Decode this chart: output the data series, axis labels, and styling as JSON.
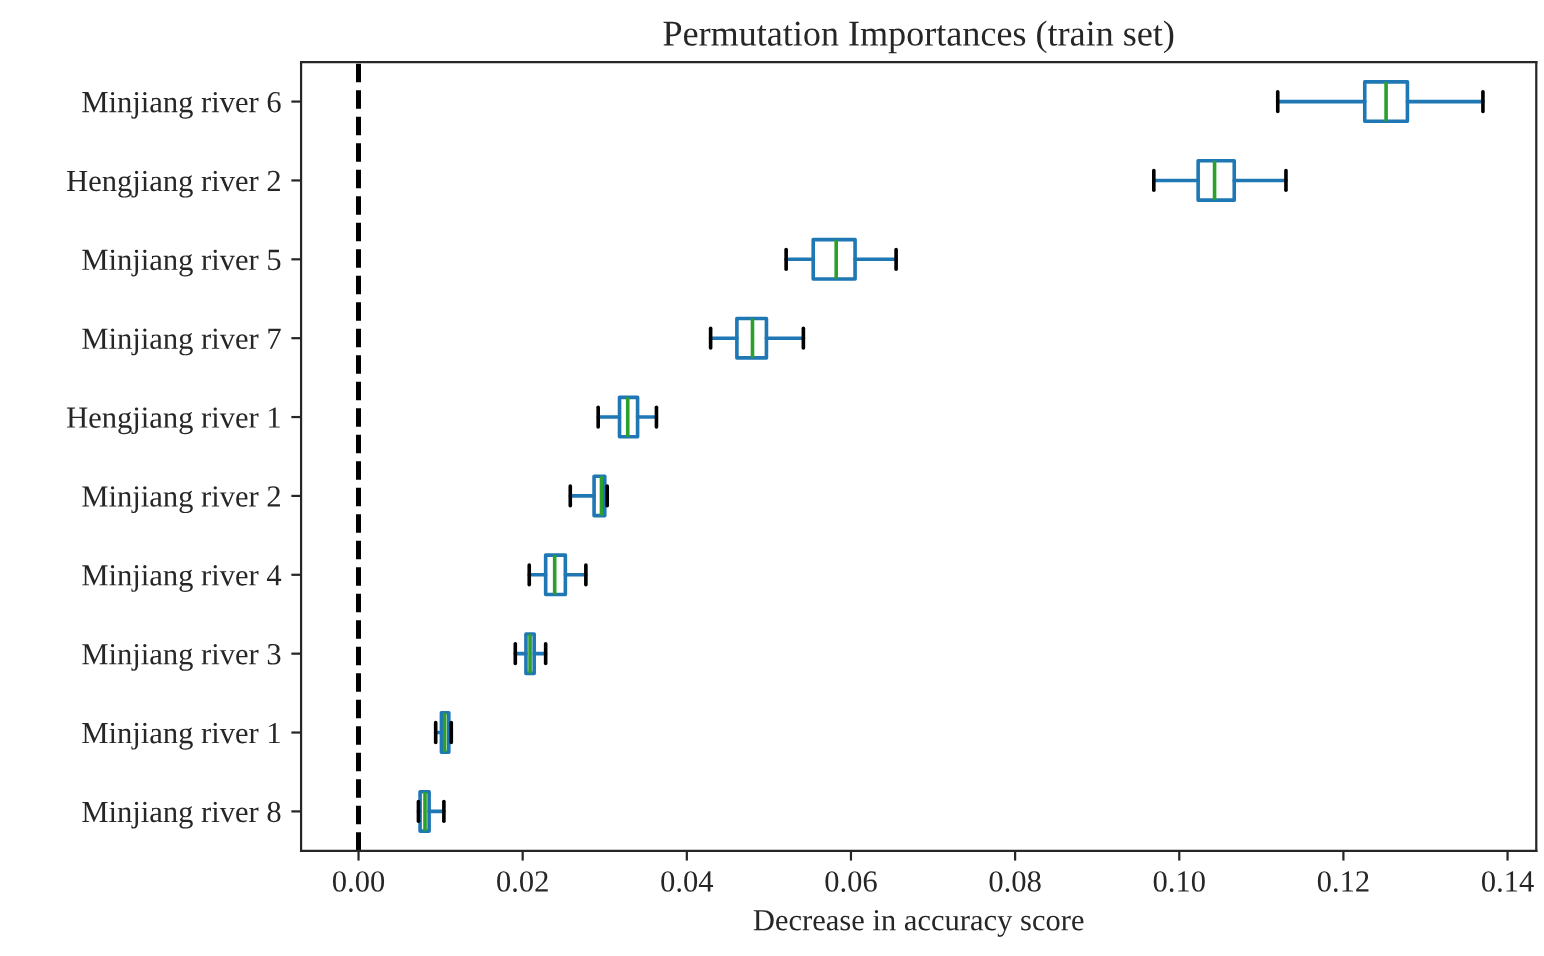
{
  "chart_data": {
    "type": "box",
    "orientation": "horizontal",
    "title": "Permutation Importances (train set)",
    "xlabel": "Decrease in accuracy score",
    "categories": [
      "Minjiang river 6",
      "Hengjiang river 2",
      "Minjiang river 5",
      "Minjiang river 7",
      "Hengjiang river 1",
      "Minjiang river 2",
      "Minjiang river 4",
      "Minjiang river 3",
      "Minjiang river 1",
      "Minjiang river 8"
    ],
    "boxes": [
      {
        "low": 0.112,
        "q1": 0.1226,
        "median": 0.1252,
        "q3": 0.1278,
        "high": 0.137
      },
      {
        "low": 0.0969,
        "q1": 0.1023,
        "median": 0.1043,
        "q3": 0.1067,
        "high": 0.113
      },
      {
        "low": 0.0521,
        "q1": 0.0554,
        "median": 0.0582,
        "q3": 0.0605,
        "high": 0.0655
      },
      {
        "low": 0.0429,
        "q1": 0.0461,
        "median": 0.048,
        "q3": 0.0497,
        "high": 0.0542
      },
      {
        "low": 0.0292,
        "q1": 0.0318,
        "median": 0.0328,
        "q3": 0.034,
        "high": 0.0363
      },
      {
        "low": 0.0258,
        "q1": 0.0287,
        "median": 0.0296,
        "q3": 0.03,
        "high": 0.0303
      },
      {
        "low": 0.0208,
        "q1": 0.0228,
        "median": 0.0239,
        "q3": 0.0252,
        "high": 0.0277
      },
      {
        "low": 0.0191,
        "q1": 0.0204,
        "median": 0.0209,
        "q3": 0.0214,
        "high": 0.0228
      },
      {
        "low": 0.0094,
        "q1": 0.0101,
        "median": 0.0105,
        "q3": 0.011,
        "high": 0.0113
      },
      {
        "low": 0.0073,
        "q1": 0.0075,
        "median": 0.0081,
        "q3": 0.0086,
        "high": 0.0104
      }
    ],
    "color": "#1f77b4",
    "xlim": [
      -0.007,
      0.1435
    ],
    "xticks": [
      {
        "value": 0,
        "label": "0.00"
      },
      {
        "value": 0.02,
        "label": "0.02"
      },
      {
        "value": 0.04,
        "label": "0.04"
      },
      {
        "value": 0.06,
        "label": "0.06"
      },
      {
        "value": 0.08,
        "label": "0.08"
      },
      {
        "value": 0.1,
        "label": "0.10"
      },
      {
        "value": 0.12,
        "label": "0.12"
      },
      {
        "value": 0.14,
        "label": "0.14"
      }
    ],
    "ref_lines": [
      {
        "axis": "x",
        "value": 0,
        "label": null,
        "color": "#000000",
        "line_style": "dashed"
      }
    ],
    "grid": false
  }
}
